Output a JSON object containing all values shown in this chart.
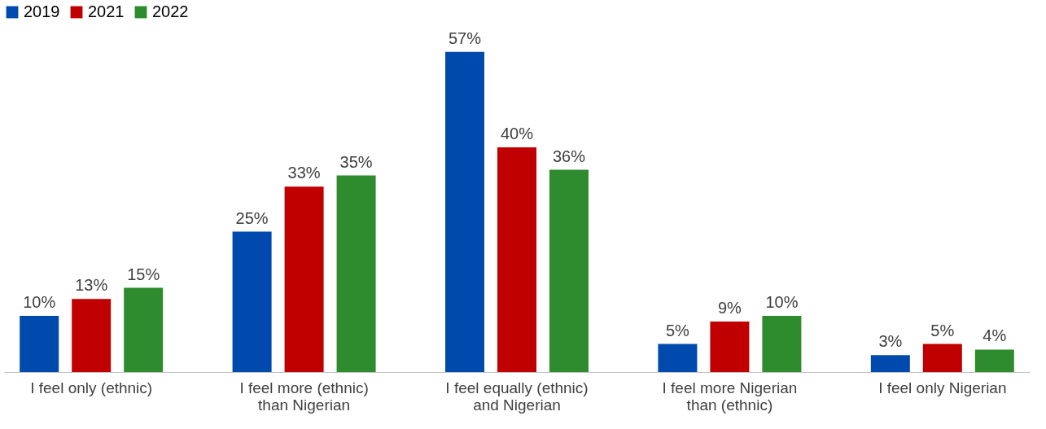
{
  "chart_data": {
    "type": "bar",
    "categories": [
      "I feel only (ethnic)",
      "I feel more (ethnic) than Nigerian",
      "I feel equally (ethnic) and Nigerian",
      "I feel more Nigerian than (ethnic)",
      "I feel only Nigerian"
    ],
    "series": [
      {
        "name": "2019",
        "color": "#004aad",
        "values": [
          10,
          25,
          57,
          5,
          3
        ],
        "value_labels": [
          "10%",
          "25%",
          "57%",
          "5%",
          "3%"
        ]
      },
      {
        "name": "2021",
        "color": "#c00000",
        "values": [
          13,
          33,
          40,
          9,
          5
        ],
        "value_labels": [
          "13%",
          "33%",
          "40%",
          "9%",
          "5%"
        ]
      },
      {
        "name": "2022",
        "color": "#2e8b2e",
        "values": [
          15,
          35,
          36,
          10,
          4
        ],
        "value_labels": [
          "15%",
          "35%",
          "36%",
          "10%",
          "4%"
        ]
      }
    ],
    "legend": "top",
    "grid": false
  }
}
